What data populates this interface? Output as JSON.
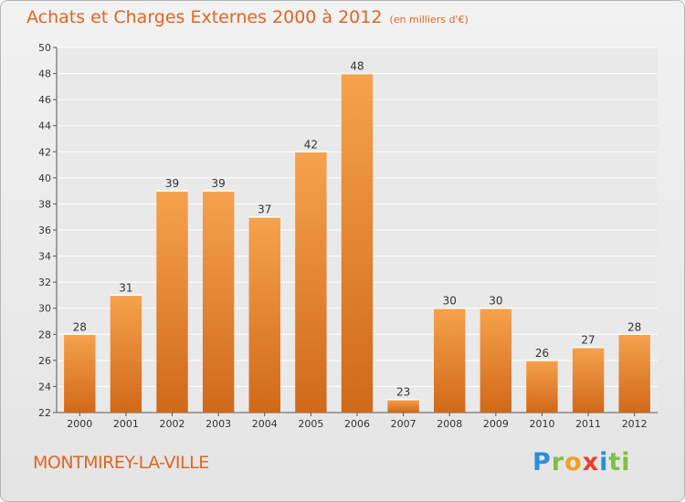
{
  "header": {
    "title": "Achats et Charges Externes 2000 à 2012",
    "unit": "(en milliers d'€)"
  },
  "footer": {
    "commune": "MONTMIREY-LA-VILLE",
    "logo_parts": [
      "P",
      "r",
      "o",
      "x",
      "i",
      "ti"
    ]
  },
  "colors": {
    "bar_light": "#f6a24c",
    "bar_dark": "#d0691a",
    "title": "#e4651f",
    "grid": "#ffffff"
  },
  "chart_data": {
    "type": "bar",
    "title": "Achats et Charges Externes 2000 à 2012",
    "categories": [
      "2000",
      "2001",
      "2002",
      "2003",
      "2004",
      "2005",
      "2006",
      "2007",
      "2008",
      "2009",
      "2010",
      "2011",
      "2012"
    ],
    "values": [
      28,
      31,
      39,
      39,
      37,
      42,
      48,
      23,
      30,
      30,
      26,
      27,
      28
    ],
    "yticks": [
      22,
      24,
      26,
      28,
      30,
      32,
      34,
      36,
      38,
      40,
      42,
      44,
      46,
      48,
      50
    ],
    "ylim": [
      22,
      50
    ],
    "grid": true,
    "legend": "none"
  }
}
